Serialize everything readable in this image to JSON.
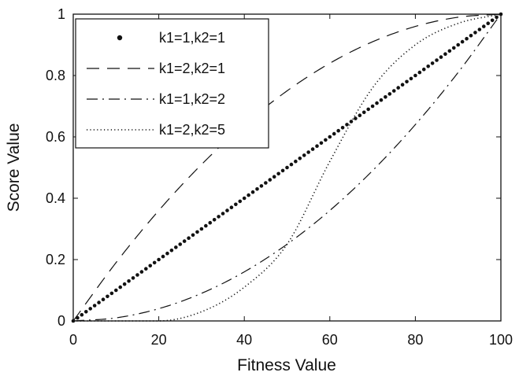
{
  "chart_data": {
    "type": "line",
    "title": "",
    "xlabel": "Fitness Value",
    "ylabel": "Score Value",
    "xlim": [
      0,
      100
    ],
    "ylim": [
      0,
      1
    ],
    "xticks": [
      "0",
      "20",
      "40",
      "60",
      "80",
      "100"
    ],
    "yticks": [
      "0",
      "0.2",
      "0.4",
      "0.6",
      "0.8",
      "1"
    ],
    "grid": false,
    "legend_position": "top-left",
    "x": [
      0,
      10,
      20,
      30,
      40,
      50,
      60,
      70,
      80,
      90,
      100
    ],
    "series": [
      {
        "name": "k1=1,k2=1",
        "style": "dotted-markers",
        "color": "#111111",
        "values": [
          0.0,
          0.1,
          0.2,
          0.3,
          0.4,
          0.5,
          0.6,
          0.7,
          0.8,
          0.9,
          1.0
        ]
      },
      {
        "name": "k1=2,k2=1",
        "style": "dashed",
        "color": "#111111",
        "values": [
          0.0,
          0.19,
          0.36,
          0.51,
          0.64,
          0.75,
          0.84,
          0.91,
          0.96,
          0.99,
          1.0
        ]
      },
      {
        "name": "k1=1,k2=2",
        "style": "dash-dot",
        "color": "#111111",
        "values": [
          0.0,
          0.01,
          0.04,
          0.09,
          0.16,
          0.25,
          0.36,
          0.49,
          0.64,
          0.81,
          1.0
        ]
      },
      {
        "name": "k1=2,k2=5",
        "style": "dotted",
        "color": "#111111",
        "values": [
          0.0,
          0.0,
          0.0,
          0.03,
          0.11,
          0.25,
          0.52,
          0.76,
          0.9,
          0.97,
          1.0
        ]
      }
    ]
  }
}
